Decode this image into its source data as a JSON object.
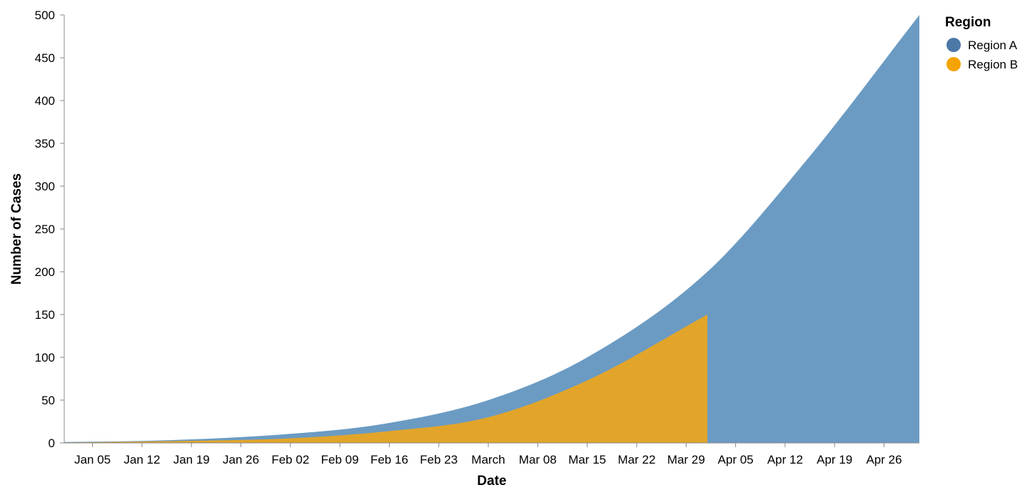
{
  "chart_data": {
    "type": "area",
    "xlabel": "Date",
    "ylabel": "Number of Cases",
    "x_domain": [
      "2020-01-01",
      "2020-05-01"
    ],
    "ylim": [
      0,
      500
    ],
    "y_ticks": [
      0,
      50,
      100,
      150,
      200,
      250,
      300,
      350,
      400,
      450,
      500
    ],
    "x_ticks": [
      {
        "date": "2020-01-05",
        "label": "Jan 05"
      },
      {
        "date": "2020-01-12",
        "label": "Jan 12"
      },
      {
        "date": "2020-01-19",
        "label": "Jan 19"
      },
      {
        "date": "2020-01-26",
        "label": "Jan 26"
      },
      {
        "date": "2020-02-02",
        "label": "Feb 02"
      },
      {
        "date": "2020-02-09",
        "label": "Feb 09"
      },
      {
        "date": "2020-02-16",
        "label": "Feb 16"
      },
      {
        "date": "2020-02-23",
        "label": "Feb 23"
      },
      {
        "date": "2020-03-01",
        "label": "March"
      },
      {
        "date": "2020-03-08",
        "label": "Mar 08"
      },
      {
        "date": "2020-03-15",
        "label": "Mar 15"
      },
      {
        "date": "2020-03-22",
        "label": "Mar 22"
      },
      {
        "date": "2020-03-29",
        "label": "Mar 29"
      },
      {
        "date": "2020-04-05",
        "label": "Apr 05"
      },
      {
        "date": "2020-04-12",
        "label": "Apr 12"
      },
      {
        "date": "2020-04-19",
        "label": "Apr 19"
      },
      {
        "date": "2020-04-26",
        "label": "Apr 26"
      }
    ],
    "grid": false,
    "legend": {
      "title": "Region",
      "position": "top-right",
      "entries": [
        {
          "label": "Region A",
          "color": "#4c78a8"
        },
        {
          "label": "Region B",
          "color": "#f5a300"
        }
      ]
    },
    "series": [
      {
        "name": "Region A",
        "color": "#6b9bc3",
        "x": [
          "2020-01-01",
          "2020-01-15",
          "2020-02-01",
          "2020-02-15",
          "2020-03-01",
          "2020-03-15",
          "2020-04-01",
          "2020-04-15",
          "2020-05-01"
        ],
        "y": [
          1,
          3,
          10,
          22,
          50,
          100,
          200,
          330,
          500
        ]
      },
      {
        "name": "Region B",
        "color": "#e2a52a",
        "x": [
          "2020-01-01",
          "2020-01-15",
          "2020-02-01",
          "2020-02-15",
          "2020-03-01",
          "2020-03-15",
          "2020-04-01"
        ],
        "y": [
          0.5,
          2,
          5,
          13,
          30,
          73,
          150
        ]
      }
    ]
  }
}
